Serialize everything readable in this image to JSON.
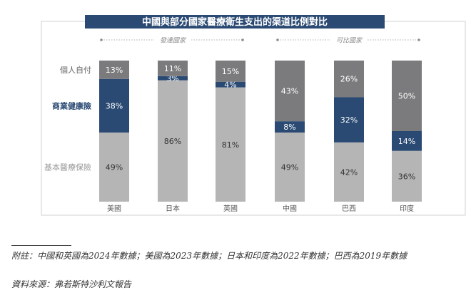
{
  "chart_data": {
    "type": "bar",
    "stacked": true,
    "title": "中國與部分國家醫療衛生支出的渠道比例對比",
    "groups": [
      {
        "label": "發達國家",
        "categories": [
          "美國",
          "日本",
          "英國"
        ]
      },
      {
        "label": "可比國家",
        "categories": [
          "中國",
          "巴西",
          "印度"
        ]
      }
    ],
    "categories": [
      "美國",
      "日本",
      "英國",
      "中國",
      "巴西",
      "印度"
    ],
    "series": [
      {
        "name": "基本醫療保險",
        "values": [
          49,
          86,
          81,
          49,
          42,
          36
        ],
        "color": "#b5b5b5",
        "label_color": "#333333"
      },
      {
        "name": "商業健康險",
        "values": [
          38,
          3,
          4,
          8,
          32,
          14
        ],
        "color": "#2a4a73",
        "label_color": "#ffffff"
      },
      {
        "name": "個人自付",
        "values": [
          13,
          11,
          15,
          43,
          26,
          50
        ],
        "color": "#7b7b7d",
        "label_color": "#ffffff"
      }
    ],
    "legend_colors": [
      "#999999",
      "#2a4a73",
      "#666666"
    ],
    "ylim": [
      0,
      100
    ],
    "grid": false,
    "legend_placement": "left"
  },
  "footnotes": {
    "note": "附註：中國和英國為2024年數據；美國為2023年數據；日本和印度為2022年數據；巴西為2019年數據",
    "source": "資料來源：弗若斯特沙利文報告"
  },
  "colors": {
    "title_bg": "#2a4a73",
    "frame": "#d0d0d0"
  }
}
